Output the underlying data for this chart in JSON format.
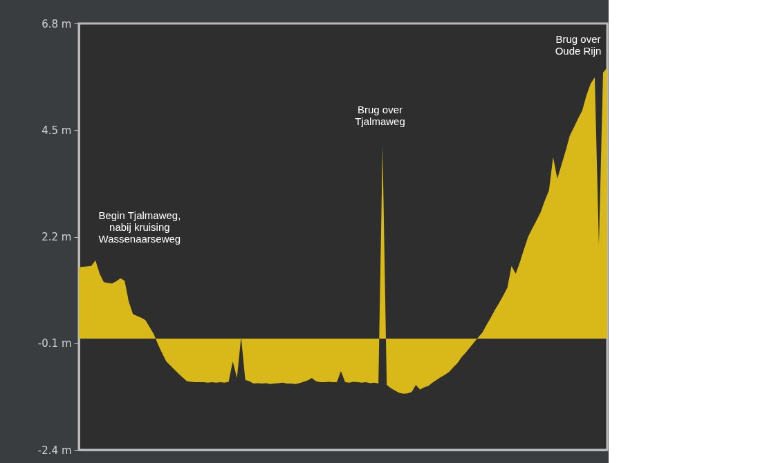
{
  "chart_data": {
    "type": "area",
    "categories": [
      null,
      null,
      null,
      null,
      null,
      null,
      null,
      null,
      null,
      null,
      null,
      null,
      null,
      null,
      null,
      null,
      null,
      null,
      null,
      null,
      null,
      null,
      null,
      null,
      null,
      null,
      null,
      null,
      null,
      null,
      null,
      null,
      null,
      null,
      null,
      null,
      null,
      null,
      null,
      null,
      null,
      null,
      null,
      null,
      null,
      null,
      null,
      null,
      null,
      null,
      null,
      null,
      null,
      null,
      null,
      null,
      null,
      null,
      null,
      null,
      null,
      null,
      null,
      null,
      null,
      null,
      null,
      null,
      null,
      null,
      null,
      null,
      null,
      null,
      null,
      null,
      null,
      null,
      null,
      null,
      null,
      null,
      null,
      null,
      null,
      null,
      null,
      null,
      null,
      null,
      null,
      null,
      null,
      null,
      null,
      null,
      null,
      null,
      null,
      null,
      null,
      null,
      null,
      null,
      null,
      null,
      null,
      null,
      null,
      null,
      null,
      null,
      null,
      null,
      null,
      null,
      null,
      null,
      null,
      null,
      null,
      null,
      null,
      null,
      null,
      null,
      null,
      null
    ],
    "series": [
      {
        "color": "#d9b91a",
        "values": [
          1.54,
          1.55,
          1.56,
          1.57,
          1.69,
          1.4,
          1.22,
          1.2,
          1.19,
          1.24,
          1.3,
          1.25,
          0.8,
          0.53,
          0.49,
          0.45,
          0.4,
          0.25,
          0.1,
          -0.12,
          -0.31,
          -0.49,
          -0.58,
          -0.67,
          -0.76,
          -0.84,
          -0.92,
          -0.93,
          -0.94,
          -0.94,
          -0.94,
          -0.95,
          -0.94,
          -0.95,
          -0.94,
          -0.95,
          -0.93,
          -0.49,
          -0.85,
          0.03,
          -0.89,
          -0.92,
          -0.97,
          -0.96,
          -0.97,
          -0.96,
          -0.98,
          -0.97,
          -0.96,
          -0.95,
          -0.97,
          -0.97,
          -0.98,
          -0.96,
          -0.93,
          -0.9,
          -0.85,
          -0.92,
          -0.94,
          -0.94,
          -0.93,
          -0.94,
          -0.94,
          -0.7,
          -0.94,
          -0.95,
          -0.93,
          -0.94,
          -0.95,
          -0.94,
          -0.96,
          -0.95,
          -0.97,
          4.15,
          -1.0,
          -1.07,
          -1.12,
          -1.17,
          -1.19,
          -1.18,
          -1.15,
          -1.0,
          -1.1,
          -1.05,
          -1.02,
          -0.95,
          -0.89,
          -0.83,
          -0.78,
          -0.72,
          -0.62,
          -0.53,
          -0.4,
          -0.3,
          -0.19,
          -0.08,
          0.03,
          0.13,
          0.3,
          0.45,
          0.62,
          0.77,
          0.93,
          1.1,
          1.57,
          1.4,
          1.65,
          1.93,
          2.2,
          2.38,
          2.55,
          2.73,
          2.98,
          3.2,
          3.92,
          3.45,
          3.75,
          4.05,
          4.38,
          4.56,
          4.75,
          4.92,
          5.25,
          5.5,
          5.64,
          2.01,
          5.74,
          5.85
        ]
      }
    ],
    "ylim": [
      -2.4,
      6.8
    ],
    "yticks": [
      {
        "value": -2.4,
        "label": "-2.4 m"
      },
      {
        "value": -0.1,
        "label": "-0.1 m"
      },
      {
        "value": 2.2,
        "label": "2.2 m"
      },
      {
        "value": 4.5,
        "label": "4.5 m"
      },
      {
        "value": 6.8,
        "label": "6.8 m"
      }
    ],
    "tick_labels": "y",
    "annotations": [
      "Begin Tjalmaweg,\nnabij kruising\nWassenaarseweg",
      "Brug over\nTjalmaweg",
      "Brug over\nOude Rijn"
    ]
  }
}
